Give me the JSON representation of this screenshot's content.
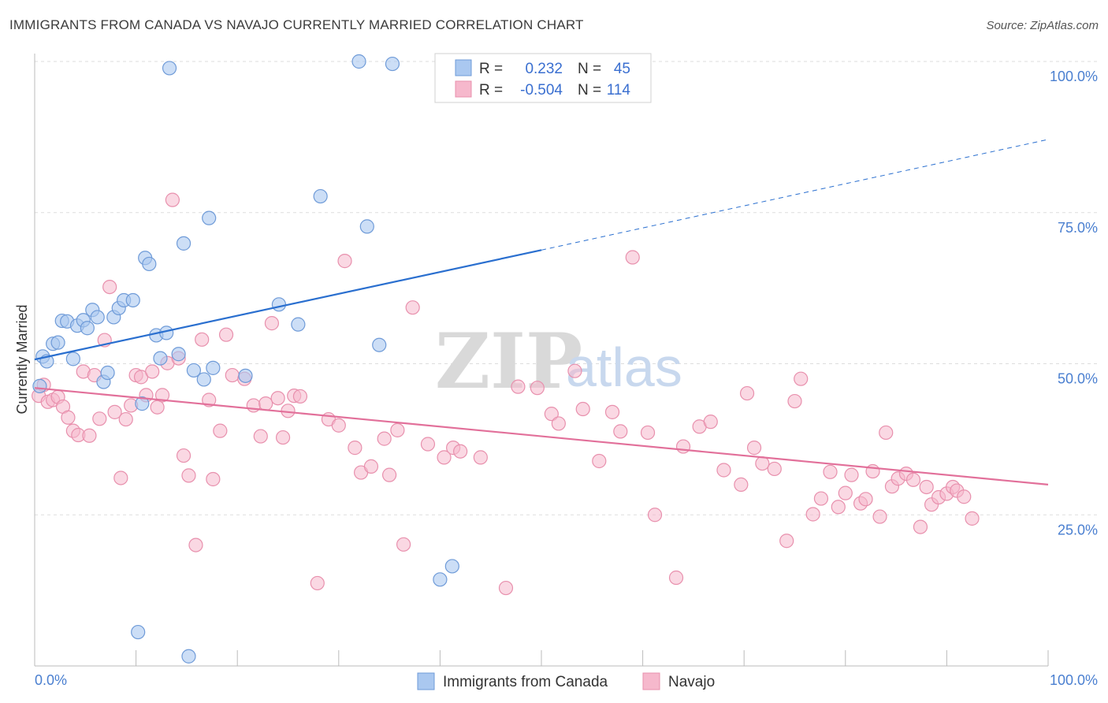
{
  "title": "IMMIGRANTS FROM CANADA VS NAVAJO CURRENTLY MARRIED CORRELATION CHART",
  "source": "Source: ZipAtlas.com",
  "watermark": {
    "part1": "ZIP",
    "part2": "atlas"
  },
  "legend_top": {
    "rows": [
      {
        "r_label": "R =",
        "r_value": "0.232",
        "n_label": "N =",
        "n_value": "45"
      },
      {
        "r_label": "R =",
        "r_value": "-0.504",
        "n_label": "N =",
        "n_value": "114"
      }
    ]
  },
  "colors": {
    "blue_fill": "#aac8f0",
    "blue_stroke": "#6f9bd8",
    "blue_line": "#2a6fcf",
    "pink_fill": "#f6b8cc",
    "pink_stroke": "#e890ad",
    "pink_line": "#e2709a",
    "tick_text": "#4a7fd0",
    "grid": "#dddddd"
  },
  "chart_data": {
    "type": "scatter",
    "title": "IMMIGRANTS FROM CANADA VS NAVAJO CURRENTLY MARRIED CORRELATION CHART",
    "xlabel": "",
    "ylabel": "Currently Married",
    "xlim": [
      0,
      100
    ],
    "ylim": [
      0,
      100
    ],
    "x_tick_labels": [
      "0.0%",
      "100.0%"
    ],
    "y_tick_labels": [
      "25.0%",
      "50.0%",
      "75.0%",
      "100.0%"
    ],
    "y_ticks": [
      25,
      50,
      75,
      100
    ],
    "grid": true,
    "legend_position": "bottom-center",
    "series": [
      {
        "name": "Immigrants from Canada",
        "color": "#aac8f0",
        "trend": {
          "x": [
            0,
            50
          ],
          "y": [
            50.7,
            68.8
          ],
          "dashed_to": [
            100,
            87.1
          ]
        },
        "points": [
          [
            0.5,
            46.3
          ],
          [
            0.8,
            51.2
          ],
          [
            1.2,
            50.4
          ],
          [
            1.8,
            53.3
          ],
          [
            2.3,
            53.5
          ],
          [
            2.7,
            57.1
          ],
          [
            3.2,
            57.0
          ],
          [
            3.8,
            50.8
          ],
          [
            4.2,
            56.3
          ],
          [
            4.8,
            57.2
          ],
          [
            5.2,
            55.9
          ],
          [
            5.7,
            58.9
          ],
          [
            6.2,
            57.7
          ],
          [
            6.8,
            47.0
          ],
          [
            7.2,
            48.5
          ],
          [
            7.8,
            57.7
          ],
          [
            8.3,
            59.2
          ],
          [
            8.8,
            60.5
          ],
          [
            9.7,
            60.5
          ],
          [
            10.2,
            5.6
          ],
          [
            10.6,
            43.4
          ],
          [
            10.9,
            67.5
          ],
          [
            11.3,
            66.5
          ],
          [
            12.0,
            54.7
          ],
          [
            12.4,
            50.9
          ],
          [
            13.0,
            55.1
          ],
          [
            13.3,
            98.9
          ],
          [
            14.2,
            51.6
          ],
          [
            14.7,
            69.9
          ],
          [
            15.2,
            1.6
          ],
          [
            15.7,
            48.9
          ],
          [
            16.7,
            47.4
          ],
          [
            17.2,
            74.1
          ],
          [
            17.6,
            49.3
          ],
          [
            20.8,
            48.0
          ],
          [
            24.1,
            59.8
          ],
          [
            26.0,
            56.5
          ],
          [
            28.2,
            77.7
          ],
          [
            32.0,
            100.0
          ],
          [
            32.8,
            72.7
          ],
          [
            34.0,
            53.1
          ],
          [
            35.3,
            99.6
          ],
          [
            40.0,
            14.3
          ],
          [
            41.2,
            16.5
          ],
          [
            47.0,
            100.0
          ]
        ]
      },
      {
        "name": "Navajo",
        "color": "#f6b8cc",
        "trend": {
          "x": [
            0,
            100
          ],
          "y": [
            46.0,
            30.0
          ]
        },
        "points": [
          [
            0.4,
            44.7
          ],
          [
            0.9,
            46.5
          ],
          [
            1.3,
            43.7
          ],
          [
            1.8,
            44.0
          ],
          [
            2.3,
            44.5
          ],
          [
            2.8,
            42.9
          ],
          [
            3.3,
            41.1
          ],
          [
            3.8,
            38.9
          ],
          [
            4.3,
            38.2
          ],
          [
            4.8,
            48.7
          ],
          [
            5.4,
            38.1
          ],
          [
            5.9,
            48.1
          ],
          [
            6.4,
            40.9
          ],
          [
            6.9,
            53.9
          ],
          [
            7.4,
            62.7
          ],
          [
            7.9,
            42.0
          ],
          [
            8.5,
            31.1
          ],
          [
            9.0,
            40.8
          ],
          [
            9.5,
            43.1
          ],
          [
            10.0,
            48.1
          ],
          [
            10.5,
            47.8
          ],
          [
            11.0,
            44.8
          ],
          [
            11.6,
            48.7
          ],
          [
            12.1,
            42.8
          ],
          [
            12.6,
            44.8
          ],
          [
            13.1,
            50.1
          ],
          [
            13.6,
            77.1
          ],
          [
            14.2,
            50.9
          ],
          [
            14.7,
            34.8
          ],
          [
            15.2,
            31.5
          ],
          [
            15.9,
            20.0
          ],
          [
            16.5,
            54.0
          ],
          [
            17.2,
            44.0
          ],
          [
            17.6,
            30.9
          ],
          [
            18.3,
            38.9
          ],
          [
            18.9,
            54.8
          ],
          [
            19.5,
            48.1
          ],
          [
            20.7,
            47.5
          ],
          [
            21.6,
            43.1
          ],
          [
            22.3,
            38.0
          ],
          [
            22.8,
            43.4
          ],
          [
            23.4,
            56.7
          ],
          [
            24.0,
            44.3
          ],
          [
            24.5,
            37.8
          ],
          [
            25.0,
            42.2
          ],
          [
            25.6,
            44.7
          ],
          [
            26.2,
            44.6
          ],
          [
            27.9,
            13.7
          ],
          [
            29.0,
            40.8
          ],
          [
            30.0,
            39.8
          ],
          [
            30.6,
            67.0
          ],
          [
            31.6,
            36.1
          ],
          [
            32.2,
            32.0
          ],
          [
            33.2,
            33.0
          ],
          [
            34.5,
            37.6
          ],
          [
            35.0,
            31.6
          ],
          [
            35.8,
            39.0
          ],
          [
            36.4,
            20.1
          ],
          [
            37.3,
            59.3
          ],
          [
            38.8,
            36.7
          ],
          [
            40.4,
            34.5
          ],
          [
            41.3,
            36.1
          ],
          [
            42.0,
            35.5
          ],
          [
            44.0,
            34.5
          ],
          [
            46.5,
            12.9
          ],
          [
            47.7,
            46.2
          ],
          [
            49.6,
            46.0
          ],
          [
            51.0,
            41.7
          ],
          [
            51.7,
            40.1
          ],
          [
            53.3,
            48.8
          ],
          [
            54.1,
            42.5
          ],
          [
            55.7,
            33.9
          ],
          [
            57.0,
            42.0
          ],
          [
            57.8,
            38.8
          ],
          [
            59.0,
            67.6
          ],
          [
            60.5,
            38.6
          ],
          [
            61.2,
            25.0
          ],
          [
            63.3,
            14.6
          ],
          [
            64.0,
            36.3
          ],
          [
            65.6,
            39.6
          ],
          [
            66.7,
            40.4
          ],
          [
            68.0,
            32.4
          ],
          [
            69.7,
            30.0
          ],
          [
            70.3,
            45.1
          ],
          [
            71.0,
            36.1
          ],
          [
            71.8,
            33.5
          ],
          [
            73.0,
            32.6
          ],
          [
            74.2,
            20.7
          ],
          [
            75.0,
            43.8
          ],
          [
            75.6,
            47.5
          ],
          [
            76.8,
            25.1
          ],
          [
            77.6,
            27.7
          ],
          [
            78.5,
            32.1
          ],
          [
            79.3,
            26.3
          ],
          [
            80.0,
            28.6
          ],
          [
            80.6,
            31.6
          ],
          [
            81.5,
            26.9
          ],
          [
            82.0,
            27.6
          ],
          [
            82.7,
            32.2
          ],
          [
            83.4,
            24.7
          ],
          [
            84.0,
            38.6
          ],
          [
            84.6,
            29.7
          ],
          [
            85.2,
            31.0
          ],
          [
            86.0,
            31.8
          ],
          [
            86.7,
            30.8
          ],
          [
            87.4,
            23.0
          ],
          [
            88.0,
            29.6
          ],
          [
            88.5,
            26.7
          ],
          [
            89.2,
            27.9
          ],
          [
            90.0,
            28.5
          ],
          [
            90.6,
            29.6
          ],
          [
            91.0,
            29.0
          ],
          [
            91.7,
            28.0
          ],
          [
            92.5,
            24.4
          ]
        ]
      }
    ]
  },
  "bottom_legend": {
    "items": [
      {
        "label": "Immigrants from Canada"
      },
      {
        "label": "Navajo"
      }
    ]
  }
}
